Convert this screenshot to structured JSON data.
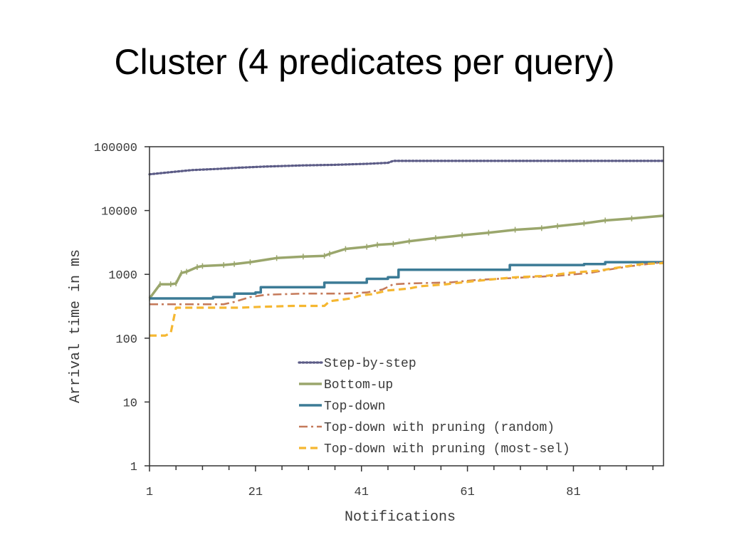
{
  "slide": {
    "title": "Cluster (4 predicates per query)"
  },
  "chart_data": {
    "type": "line",
    "title": "",
    "xlabel": "Notifications",
    "ylabel": "Arrival time in ms",
    "xlim": [
      1,
      98
    ],
    "ylim": [
      1,
      100000
    ],
    "yscale": "log",
    "xticks": [
      1,
      21,
      41,
      61,
      81
    ],
    "yticks": [
      1,
      10,
      100,
      1000,
      10000,
      100000
    ],
    "ytick_labels": [
      "1",
      "10",
      "100",
      "1000",
      "10000",
      "100000"
    ],
    "legend_position": "bottom-center",
    "grid": false,
    "series": [
      {
        "name": "Step-by-step",
        "color": "#5b5b86",
        "style": "dotted",
        "points": [
          [
            1,
            37000
          ],
          [
            5,
            40000
          ],
          [
            9,
            43000
          ],
          [
            14,
            45000
          ],
          [
            18,
            47000
          ],
          [
            23,
            49000
          ],
          [
            30,
            51000
          ],
          [
            36,
            52000
          ],
          [
            42,
            54000
          ],
          [
            46,
            56000
          ],
          [
            47,
            60000
          ],
          [
            60,
            60000
          ],
          [
            75,
            60000
          ],
          [
            90,
            60000
          ],
          [
            98,
            60000
          ]
        ]
      },
      {
        "name": "Bottom-up",
        "color": "#9aa66c",
        "style": "solid-marker",
        "points": [
          [
            1,
            420
          ],
          [
            3,
            700
          ],
          [
            5,
            700
          ],
          [
            6,
            720
          ],
          [
            7,
            1050
          ],
          [
            8,
            1100
          ],
          [
            10,
            1300
          ],
          [
            11,
            1350
          ],
          [
            15,
            1400
          ],
          [
            17,
            1450
          ],
          [
            20,
            1550
          ],
          [
            25,
            1800
          ],
          [
            30,
            1900
          ],
          [
            34,
            1950
          ],
          [
            35,
            2100
          ],
          [
            38,
            2500
          ],
          [
            42,
            2700
          ],
          [
            44,
            2900
          ],
          [
            47,
            3000
          ],
          [
            50,
            3300
          ],
          [
            55,
            3700
          ],
          [
            60,
            4100
          ],
          [
            65,
            4500
          ],
          [
            70,
            5000
          ],
          [
            75,
            5300
          ],
          [
            78,
            5700
          ],
          [
            83,
            6300
          ],
          [
            87,
            7000
          ],
          [
            92,
            7500
          ],
          [
            98,
            8300
          ]
        ]
      },
      {
        "name": "Top-down",
        "color": "#3c7b96",
        "style": "solid",
        "points": [
          [
            1,
            420
          ],
          [
            12,
            420
          ],
          [
            13,
            440
          ],
          [
            16,
            440
          ],
          [
            17,
            500
          ],
          [
            21,
            520
          ],
          [
            22,
            630
          ],
          [
            27,
            630
          ],
          [
            33,
            630
          ],
          [
            34,
            740
          ],
          [
            41,
            740
          ],
          [
            42,
            850
          ],
          [
            45,
            850
          ],
          [
            46,
            900
          ],
          [
            47,
            900
          ],
          [
            48,
            1180
          ],
          [
            54,
            1180
          ],
          [
            60,
            1180
          ],
          [
            68,
            1180
          ],
          [
            69,
            1400
          ],
          [
            80,
            1400
          ],
          [
            83,
            1450
          ],
          [
            86,
            1450
          ],
          [
            87,
            1550
          ],
          [
            98,
            1550
          ]
        ]
      },
      {
        "name": "Top-down with pruning (random)",
        "color": "#c57a5a",
        "style": "dashdot",
        "points": [
          [
            1,
            340
          ],
          [
            13,
            340
          ],
          [
            15,
            340
          ],
          [
            17,
            370
          ],
          [
            20,
            440
          ],
          [
            23,
            480
          ],
          [
            30,
            500
          ],
          [
            38,
            500
          ],
          [
            42,
            520
          ],
          [
            45,
            580
          ],
          [
            47,
            700
          ],
          [
            50,
            720
          ],
          [
            58,
            750
          ],
          [
            63,
            820
          ],
          [
            70,
            880
          ],
          [
            78,
            950
          ],
          [
            84,
            1050
          ],
          [
            88,
            1200
          ],
          [
            92,
            1350
          ],
          [
            98,
            1550
          ]
        ]
      },
      {
        "name": "Top-down with pruning (most-sel)",
        "color": "#f5b731",
        "style": "dashed",
        "points": [
          [
            1,
            110
          ],
          [
            4,
            110
          ],
          [
            5,
            120
          ],
          [
            6,
            300
          ],
          [
            15,
            300
          ],
          [
            18,
            300
          ],
          [
            22,
            310
          ],
          [
            28,
            320
          ],
          [
            34,
            320
          ],
          [
            35,
            380
          ],
          [
            39,
            420
          ],
          [
            41,
            470
          ],
          [
            43,
            490
          ],
          [
            46,
            560
          ],
          [
            50,
            600
          ],
          [
            52,
            650
          ],
          [
            57,
            700
          ],
          [
            62,
            780
          ],
          [
            66,
            840
          ],
          [
            70,
            900
          ],
          [
            76,
            950
          ],
          [
            80,
            1050
          ],
          [
            86,
            1150
          ],
          [
            90,
            1300
          ],
          [
            94,
            1450
          ],
          [
            98,
            1500
          ]
        ]
      }
    ]
  }
}
